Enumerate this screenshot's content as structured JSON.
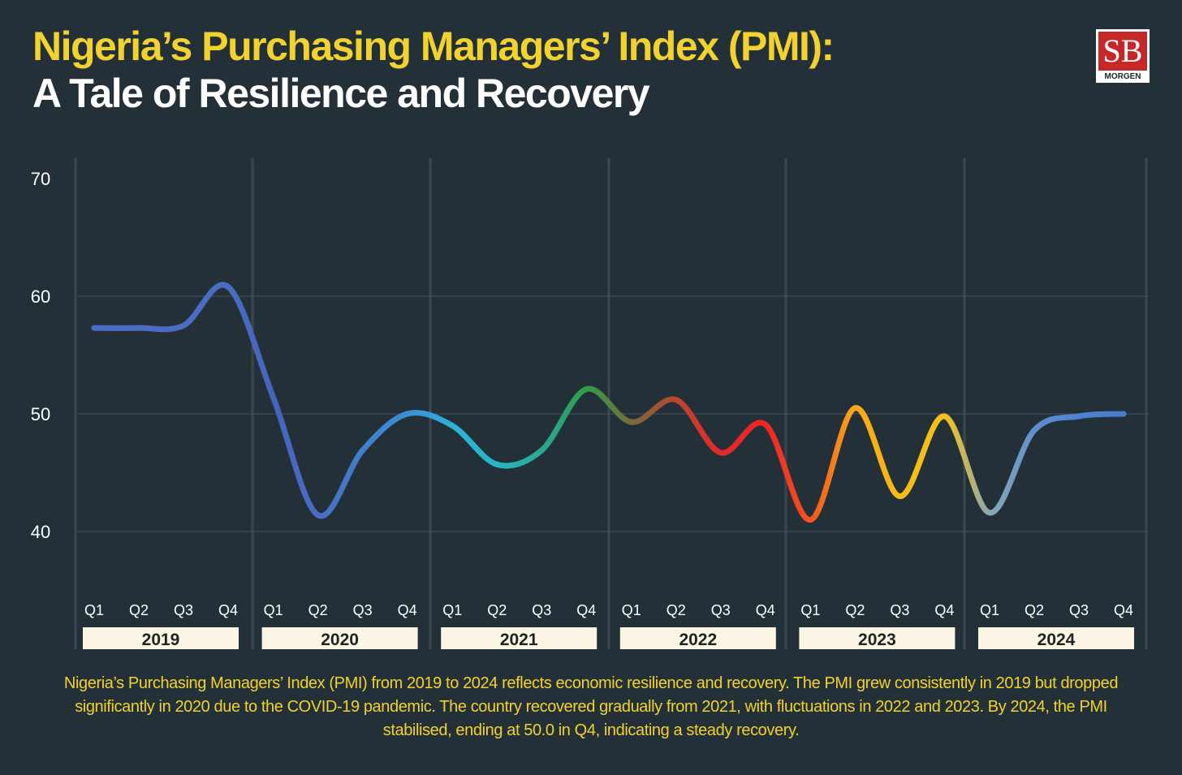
{
  "header": {
    "title_line1": "Nigeria’s Purchasing Managers’ Index (PMI):",
    "title_line2": "A Tale of Resilience and Recovery",
    "logo_text": "SB",
    "logo_sub": "MORGEN"
  },
  "chart_data": {
    "type": "line",
    "title": "Nigeria’s Purchasing Managers’ Index (PMI)",
    "xlabel": "",
    "ylabel": "PMI",
    "ylim": [
      35,
      70
    ],
    "yticks": [
      "40",
      "50",
      "60",
      "70"
    ],
    "years": [
      "2019",
      "2020",
      "2021",
      "2022",
      "2023",
      "2024"
    ],
    "quarters": [
      "Q1",
      "Q2",
      "Q3",
      "Q4"
    ],
    "series": [
      {
        "name": "PMI",
        "values": [
          57.3,
          57.3,
          57.5,
          60.8,
          51.4,
          41.4,
          46.9,
          50.0,
          49.0,
          45.7,
          46.9,
          52.1,
          49.3,
          51.2,
          46.7,
          49.1,
          41.0,
          50.5,
          43.0,
          49.8,
          41.6,
          48.6,
          49.8,
          50.0
        ]
      }
    ],
    "point_colors": [
      "#4a6cc4",
      "#4a6cc4",
      "#4a6cc4",
      "#4a6cc4",
      "#4564c0",
      "#4a6cc4",
      "#3f7fcc",
      "#3a8fd6",
      "#2fb0d8",
      "#25b7c7",
      "#2aa890",
      "#2e9e4a",
      "#7a6a3a",
      "#b9452c",
      "#e32a2a",
      "#ee2525",
      "#f3541e",
      "#f7a91a",
      "#f7b916",
      "#f6c21a",
      "#8aa8b0",
      "#5f8fd0",
      "#4f83cf",
      "#4a7cc8"
    ],
    "grid": true
  },
  "caption": "Nigeria’s Purchasing Managers’ Index (PMI) from 2019 to 2024 reflects economic resilience and recovery. The PMI grew consistently in 2019 but dropped significantly in 2020 due to the COVID-19 pandemic. The country recovered gradually from 2021, with fluctuations in 2022 and 2023. By 2024, the PMI stabilised, ending at 50.0 in Q4, indicating a steady recovery."
}
